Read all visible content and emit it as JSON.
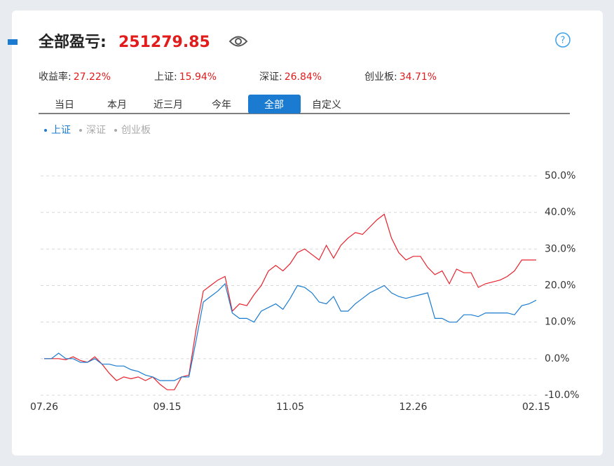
{
  "header": {
    "title": "全部盈亏:",
    "total": "251279.85"
  },
  "stats": [
    {
      "label": "收益率:",
      "value": "27.22%"
    },
    {
      "label": "上证:",
      "value": "15.94%"
    },
    {
      "label": "深证:",
      "value": "26.84%"
    },
    {
      "label": "创业板:",
      "value": "34.71%"
    }
  ],
  "tabs": {
    "items": [
      "当日",
      "本月",
      "近三月",
      "今年",
      "全部",
      "自定义"
    ],
    "active": 4
  },
  "chart_data": {
    "type": "line",
    "categories": [
      "07.26",
      null,
      null,
      null,
      null,
      null,
      null,
      null,
      null,
      null,
      null,
      null,
      null,
      null,
      null,
      null,
      null,
      "09.15",
      null,
      null,
      null,
      null,
      null,
      null,
      null,
      null,
      null,
      null,
      null,
      null,
      null,
      null,
      null,
      null,
      "11.05",
      null,
      null,
      null,
      null,
      null,
      null,
      null,
      null,
      null,
      null,
      null,
      null,
      null,
      null,
      null,
      null,
      "12.26",
      null,
      null,
      null,
      null,
      null,
      null,
      null,
      null,
      null,
      null,
      null,
      null,
      null,
      null,
      null,
      null,
      "02.15"
    ],
    "series": [
      {
        "color": "#e8212b",
        "values": [
          0,
          0,
          0,
          -0.3,
          0.5,
          -0.5,
          -1,
          0.5,
          -1.5,
          -4,
          -6,
          -5,
          -5.5,
          -5,
          -6,
          -5,
          -7,
          -8.5,
          -8.5,
          -5,
          -4.5,
          8,
          18.5,
          20,
          21.5,
          22.5,
          13,
          15,
          14.5,
          17.5,
          20,
          24,
          25.5,
          24,
          26,
          29,
          30,
          28.5,
          27,
          31,
          27.5,
          31,
          33,
          34.5,
          34,
          36,
          38,
          39.5,
          33,
          29,
          27,
          28,
          28,
          25,
          23,
          24,
          20.5,
          24.5,
          23.5,
          23.5,
          19.5,
          20.5,
          21,
          21.5,
          22.5,
          24,
          27,
          27,
          27
        ]
      },
      {
        "name": "上证",
        "color": "#1a7bd0",
        "values": [
          0,
          0,
          1.5,
          0,
          0,
          -1,
          -1,
          0,
          -1.5,
          -1.5,
          -2,
          -2,
          -3,
          -3.5,
          -4.5,
          -5,
          -6,
          -6,
          -6,
          -5,
          -5,
          5,
          15.5,
          17,
          18.5,
          20.5,
          12.5,
          11,
          11,
          10,
          13,
          14,
          15,
          13.5,
          16.5,
          20,
          19.5,
          18,
          15.5,
          15,
          17,
          13,
          13,
          15,
          16.5,
          18,
          19,
          20,
          18,
          17,
          16.5,
          17,
          17.5,
          18,
          11,
          11,
          10,
          10,
          12,
          12,
          11.5,
          12.5,
          12.5,
          12.5,
          12.5,
          12,
          14.5,
          15,
          16
        ]
      }
    ],
    "hidden_series": [
      {
        "name": "深证"
      },
      {
        "name": "创业板"
      }
    ],
    "ylim": [
      -10,
      50
    ],
    "yticks": [
      {
        "value": -10,
        "label": "-10.0%"
      },
      {
        "value": 0,
        "label": "0.0%"
      },
      {
        "value": 10,
        "label": "10.0%"
      },
      {
        "value": 20,
        "label": "20.0%"
      },
      {
        "value": 30,
        "label": "30.0%"
      },
      {
        "value": 40,
        "label": "40.0%"
      },
      {
        "value": 50,
        "label": "50.0%"
      }
    ],
    "grid": true
  }
}
